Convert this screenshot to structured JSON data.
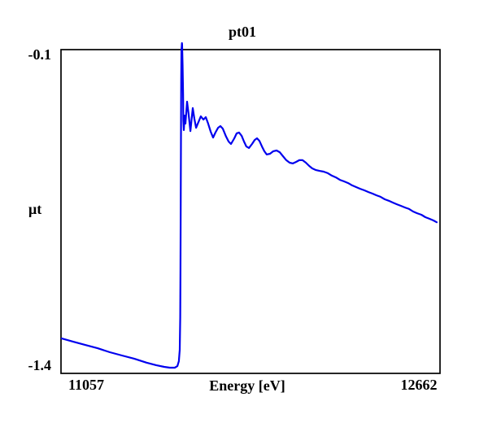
{
  "colors": {
    "line": "#0000EE",
    "frame": "#000000",
    "background": "#FFFFFF",
    "text": "#000000"
  },
  "chart_data": {
    "type": "line",
    "title": "pt01",
    "xlabel": "Energy [eV]",
    "ylabel": "μt",
    "xlim": [
      11057,
      12662
    ],
    "ylim": [
      -1.4,
      -0.1
    ],
    "x_tick_labels": [
      "11057",
      "12662"
    ],
    "y_tick_labels": [
      "-0.1",
      "-1.4"
    ],
    "grid": false,
    "legend": "none",
    "frame": "box",
    "series": [
      {
        "name": "pt01",
        "color": "#0000EE",
        "points": [
          [
            11060,
            -1.26
          ],
          [
            11109,
            -1.273
          ],
          [
            11160,
            -1.286
          ],
          [
            11212,
            -1.299
          ],
          [
            11264,
            -1.315
          ],
          [
            11315,
            -1.328
          ],
          [
            11367,
            -1.341
          ],
          [
            11419,
            -1.357
          ],
          [
            11460,
            -1.367
          ],
          [
            11494,
            -1.374
          ],
          [
            11518,
            -1.377
          ],
          [
            11539,
            -1.377
          ],
          [
            11550,
            -1.371
          ],
          [
            11556,
            -1.351
          ],
          [
            11560,
            -1.305
          ],
          [
            11562,
            -1.175
          ],
          [
            11563,
            -0.979
          ],
          [
            11564,
            -0.717
          ],
          [
            11565,
            -0.456
          ],
          [
            11566,
            -0.227
          ],
          [
            11567,
            -0.103
          ],
          [
            11569,
            -0.074
          ],
          [
            11570,
            -0.08
          ],
          [
            11572,
            -0.162
          ],
          [
            11574,
            -0.276
          ],
          [
            11575,
            -0.384
          ],
          [
            11577,
            -0.423
          ],
          [
            11581,
            -0.365
          ],
          [
            11584,
            -0.397
          ],
          [
            11591,
            -0.309
          ],
          [
            11598,
            -0.365
          ],
          [
            11605,
            -0.427
          ],
          [
            11615,
            -0.335
          ],
          [
            11622,
            -0.378
          ],
          [
            11629,
            -0.414
          ],
          [
            11639,
            -0.391
          ],
          [
            11649,
            -0.368
          ],
          [
            11660,
            -0.381
          ],
          [
            11670,
            -0.371
          ],
          [
            11680,
            -0.397
          ],
          [
            11691,
            -0.43
          ],
          [
            11701,
            -0.453
          ],
          [
            11711,
            -0.433
          ],
          [
            11722,
            -0.414
          ],
          [
            11732,
            -0.407
          ],
          [
            11742,
            -0.417
          ],
          [
            11756,
            -0.449
          ],
          [
            11767,
            -0.469
          ],
          [
            11777,
            -0.479
          ],
          [
            11791,
            -0.456
          ],
          [
            11801,
            -0.436
          ],
          [
            11811,
            -0.433
          ],
          [
            11822,
            -0.446
          ],
          [
            11832,
            -0.469
          ],
          [
            11842,
            -0.489
          ],
          [
            11853,
            -0.495
          ],
          [
            11866,
            -0.479
          ],
          [
            11877,
            -0.463
          ],
          [
            11887,
            -0.456
          ],
          [
            11897,
            -0.466
          ],
          [
            11908,
            -0.489
          ],
          [
            11918,
            -0.508
          ],
          [
            11928,
            -0.521
          ],
          [
            11942,
            -0.518
          ],
          [
            11956,
            -0.508
          ],
          [
            11970,
            -0.505
          ],
          [
            11983,
            -0.512
          ],
          [
            11997,
            -0.528
          ],
          [
            12011,
            -0.544
          ],
          [
            12025,
            -0.554
          ],
          [
            12039,
            -0.557
          ],
          [
            12052,
            -0.551
          ],
          [
            12066,
            -0.544
          ],
          [
            12080,
            -0.544
          ],
          [
            12094,
            -0.554
          ],
          [
            12108,
            -0.567
          ],
          [
            12121,
            -0.577
          ],
          [
            12135,
            -0.583
          ],
          [
            12152,
            -0.587
          ],
          [
            12169,
            -0.59
          ],
          [
            12187,
            -0.596
          ],
          [
            12204,
            -0.606
          ],
          [
            12221,
            -0.613
          ],
          [
            12238,
            -0.623
          ],
          [
            12256,
            -0.629
          ],
          [
            12273,
            -0.636
          ],
          [
            12290,
            -0.645
          ],
          [
            12307,
            -0.652
          ],
          [
            12324,
            -0.659
          ],
          [
            12342,
            -0.665
          ],
          [
            12359,
            -0.672
          ],
          [
            12376,
            -0.678
          ],
          [
            12393,
            -0.685
          ],
          [
            12410,
            -0.691
          ],
          [
            12428,
            -0.701
          ],
          [
            12445,
            -0.707
          ],
          [
            12462,
            -0.714
          ],
          [
            12479,
            -0.721
          ],
          [
            12496,
            -0.727
          ],
          [
            12514,
            -0.734
          ],
          [
            12531,
            -0.74
          ],
          [
            12548,
            -0.75
          ],
          [
            12565,
            -0.757
          ],
          [
            12583,
            -0.763
          ],
          [
            12600,
            -0.773
          ],
          [
            12617,
            -0.779
          ],
          [
            12634,
            -0.786
          ],
          [
            12648,
            -0.793
          ]
        ]
      }
    ]
  }
}
